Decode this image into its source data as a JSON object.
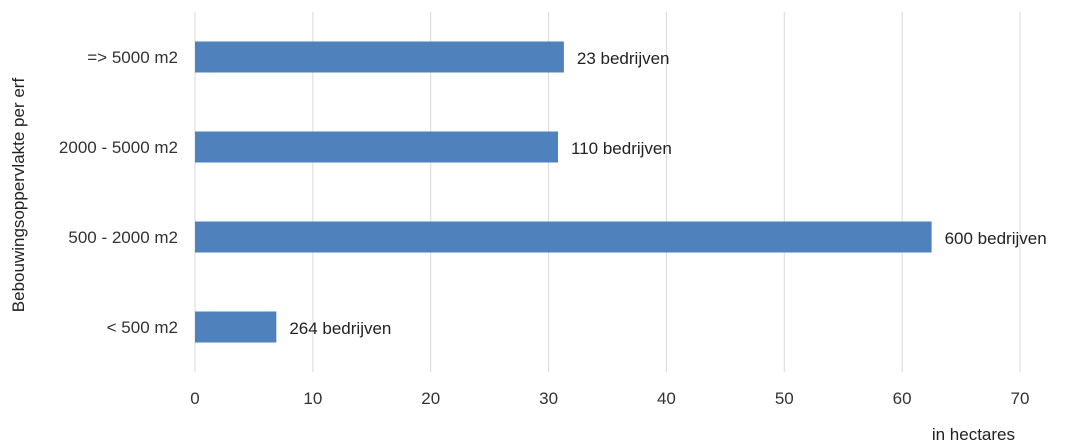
{
  "chart_data": {
    "type": "bar",
    "orientation": "horizontal",
    "categories": [
      "=> 5000 m2",
      "2000 - 5000 m2",
      "500 - 2000 m2",
      "< 500 m2"
    ],
    "values": [
      31.3,
      30.8,
      62.5,
      6.9
    ],
    "data_labels": [
      "23 bedrijven",
      "110 bedrijven",
      "600 bedrijven",
      "264 bedrijven"
    ],
    "title": "",
    "xlabel": "in hectares",
    "ylabel": "Bebouwingsoppervlakte per erf",
    "xlim": [
      0,
      70
    ],
    "x_ticks": [
      0,
      10,
      20,
      30,
      40,
      50,
      60,
      70
    ],
    "grid": "vertical",
    "legend": "none",
    "colors": {
      "bar": "#4f81bd",
      "grid": "#d9d9d9"
    }
  }
}
